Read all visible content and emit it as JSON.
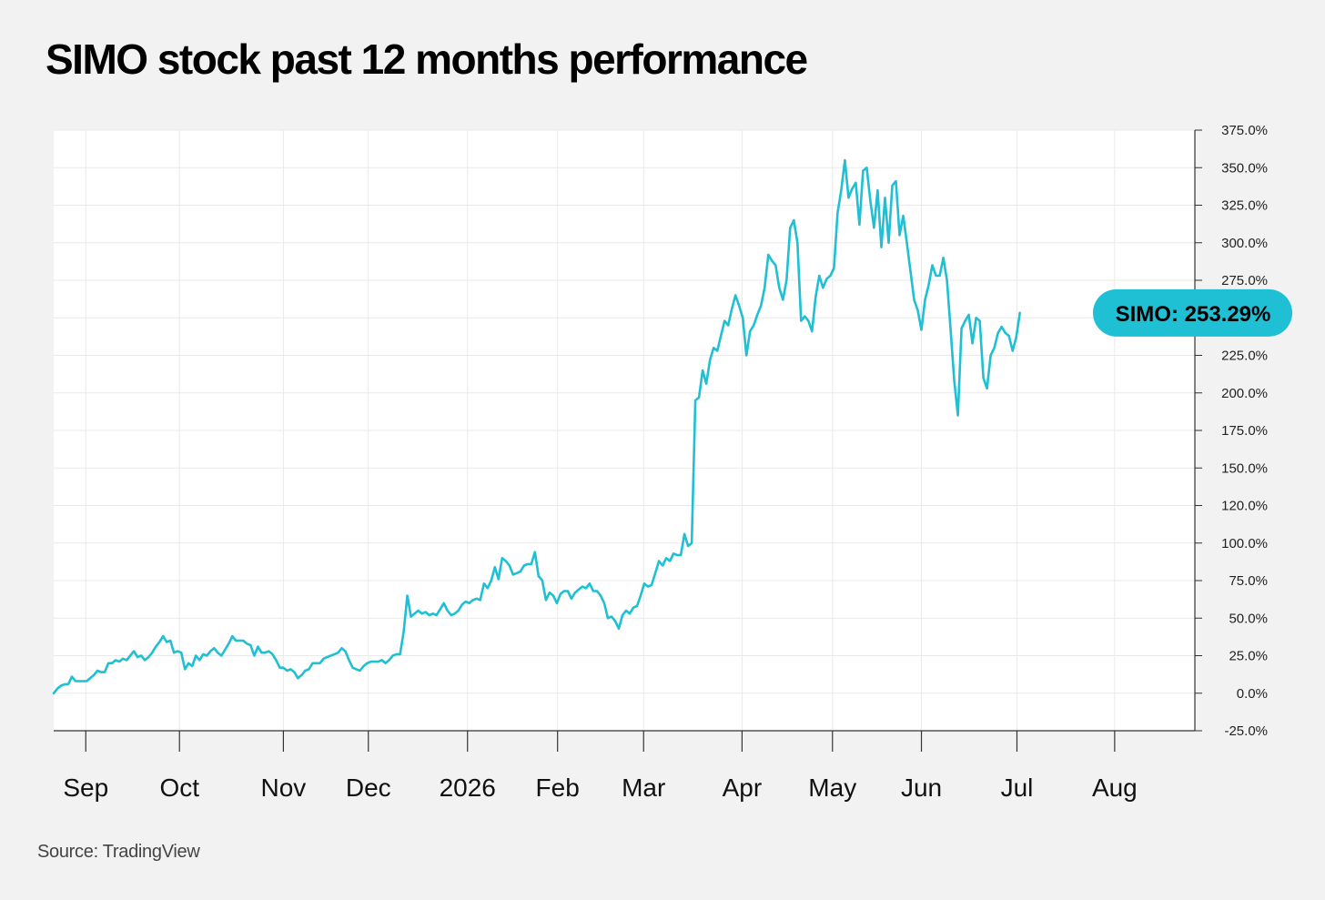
{
  "title": "SIMO stock past 12 months performance",
  "source": "Source: TradingView",
  "colors": {
    "line": "#1fbfd4",
    "grid": "#e9e9e9",
    "axis": "#333333",
    "background": "#f2f2f2",
    "plot": "#ffffff"
  },
  "chart_data": {
    "type": "line",
    "title": "SIMO stock past 12 months performance",
    "xlabel": "",
    "ylabel": "",
    "unit": "%",
    "grid": true,
    "y_ticks": [
      "375.0%",
      "350.0%",
      "325.0%",
      "300.0%",
      "275.0%",
      "250.0%",
      "225.0%",
      "200.0%",
      "175.0%",
      "150.0%",
      "120.0%",
      "100.0%",
      "75.0%",
      "50.0%",
      "25.0%",
      "0.0%",
      "-25.0%"
    ],
    "x_ticks": [
      {
        "label": "Sep",
        "x": 8.8
      },
      {
        "label": "Oct",
        "x": 34.5
      },
      {
        "label": "Nov",
        "x": 63
      },
      {
        "label": "Dec",
        "x": 86.3
      },
      {
        "label": "2026",
        "x": 113.5
      },
      {
        "label": "Feb",
        "x": 138.2
      },
      {
        "label": "Mar",
        "x": 161.8
      },
      {
        "label": "Apr",
        "x": 188.8
      },
      {
        "label": "May",
        "x": 213.6
      },
      {
        "label": "Jun",
        "x": 238
      },
      {
        "label": "Jul",
        "x": 264.2
      },
      {
        "label": "Aug",
        "x": 291
      }
    ],
    "xlim": [
      0,
      313
    ],
    "callout": {
      "label": "SIMO: 253.29%",
      "value": 253.29
    },
    "series": [
      {
        "name": "SIMO",
        "points": [
          [
            0,
            0
          ],
          [
            1,
            3
          ],
          [
            2,
            5
          ],
          [
            3,
            6
          ],
          [
            4,
            6
          ],
          [
            5,
            11
          ],
          [
            6,
            8
          ],
          [
            7,
            8
          ],
          [
            8,
            8
          ],
          [
            9,
            8
          ],
          [
            10,
            10
          ],
          [
            11,
            12
          ],
          [
            12,
            15
          ],
          [
            13,
            14
          ],
          [
            14,
            14
          ],
          [
            15,
            20
          ],
          [
            16,
            20
          ],
          [
            17,
            22
          ],
          [
            18,
            21
          ],
          [
            19,
            23
          ],
          [
            20,
            22
          ],
          [
            21,
            25
          ],
          [
            22,
            28
          ],
          [
            23,
            24
          ],
          [
            24,
            25
          ],
          [
            25,
            22
          ],
          [
            26,
            24
          ],
          [
            27,
            27
          ],
          [
            28,
            31
          ],
          [
            29,
            34
          ],
          [
            30,
            38
          ],
          [
            31,
            34
          ],
          [
            32,
            35
          ],
          [
            33,
            27
          ],
          [
            34,
            28
          ],
          [
            35,
            27
          ],
          [
            36,
            16
          ],
          [
            37,
            20
          ],
          [
            38,
            18
          ],
          [
            39,
            25
          ],
          [
            40,
            22
          ],
          [
            41,
            26
          ],
          [
            42,
            25
          ],
          [
            43,
            28
          ],
          [
            44,
            30
          ],
          [
            45,
            27
          ],
          [
            46,
            25
          ],
          [
            47,
            29
          ],
          [
            48,
            33
          ],
          [
            49,
            38
          ],
          [
            50,
            35
          ],
          [
            51,
            35
          ],
          [
            52,
            35
          ],
          [
            53,
            33
          ],
          [
            54,
            32
          ],
          [
            55,
            25
          ],
          [
            56,
            31
          ],
          [
            57,
            27
          ],
          [
            58,
            27
          ],
          [
            59,
            28
          ],
          [
            60,
            26
          ],
          [
            61,
            22
          ],
          [
            62,
            17
          ],
          [
            63,
            17
          ],
          [
            64,
            15
          ],
          [
            65,
            16
          ],
          [
            66,
            14
          ],
          [
            67,
            10
          ],
          [
            68,
            12
          ],
          [
            69,
            15
          ],
          [
            70,
            16
          ],
          [
            71,
            20
          ],
          [
            72,
            20
          ],
          [
            73,
            20
          ],
          [
            74,
            23
          ],
          [
            75,
            24
          ],
          [
            76,
            25
          ],
          [
            77,
            26
          ],
          [
            78,
            27
          ],
          [
            79,
            30
          ],
          [
            80,
            28
          ],
          [
            81,
            22
          ],
          [
            82,
            17
          ],
          [
            83,
            16
          ],
          [
            84,
            15
          ],
          [
            85,
            18
          ],
          [
            86,
            20
          ],
          [
            87,
            21
          ],
          [
            88,
            21
          ],
          [
            89,
            21
          ],
          [
            90,
            22
          ],
          [
            91,
            20
          ],
          [
            92,
            22
          ],
          [
            93,
            25
          ],
          [
            94,
            26
          ],
          [
            95,
            26
          ],
          [
            96,
            41
          ],
          [
            97,
            65
          ],
          [
            98,
            51
          ],
          [
            99,
            53
          ],
          [
            100,
            55
          ],
          [
            101,
            53
          ],
          [
            102,
            54
          ],
          [
            103,
            52
          ],
          [
            104,
            53
          ],
          [
            105,
            52
          ],
          [
            106,
            56
          ],
          [
            107,
            60
          ],
          [
            108,
            55
          ],
          [
            109,
            52
          ],
          [
            110,
            53
          ],
          [
            111,
            55
          ],
          [
            112,
            59
          ],
          [
            113,
            61
          ],
          [
            114,
            60
          ],
          [
            115,
            62
          ],
          [
            116,
            63
          ],
          [
            117,
            62
          ],
          [
            118,
            73
          ],
          [
            119,
            70
          ],
          [
            120,
            75
          ],
          [
            121,
            84
          ],
          [
            122,
            76
          ],
          [
            123,
            90
          ],
          [
            124,
            88
          ],
          [
            125,
            85
          ],
          [
            126,
            79
          ],
          [
            127,
            80
          ],
          [
            128,
            81
          ],
          [
            129,
            85
          ],
          [
            130,
            86
          ],
          [
            131,
            86
          ],
          [
            132,
            94
          ],
          [
            133,
            78
          ],
          [
            134,
            75
          ],
          [
            135,
            62
          ],
          [
            136,
            67
          ],
          [
            137,
            65
          ],
          [
            138,
            60
          ],
          [
            139,
            66
          ],
          [
            140,
            68
          ],
          [
            141,
            68
          ],
          [
            142,
            63
          ],
          [
            143,
            67
          ],
          [
            144,
            69
          ],
          [
            145,
            71
          ],
          [
            146,
            70
          ],
          [
            147,
            73
          ],
          [
            148,
            68
          ],
          [
            149,
            68
          ],
          [
            150,
            65
          ],
          [
            151,
            60
          ],
          [
            152,
            50
          ],
          [
            153,
            51
          ],
          [
            154,
            48
          ],
          [
            155,
            43
          ],
          [
            156,
            52
          ],
          [
            157,
            55
          ],
          [
            158,
            53
          ],
          [
            159,
            57
          ],
          [
            160,
            58
          ],
          [
            161,
            65
          ],
          [
            162,
            73
          ],
          [
            163,
            71
          ],
          [
            164,
            72
          ],
          [
            165,
            80
          ],
          [
            166,
            88
          ],
          [
            167,
            85
          ],
          [
            168,
            90
          ],
          [
            169,
            88
          ],
          [
            170,
            93
          ],
          [
            171,
            92
          ],
          [
            172,
            92
          ],
          [
            173,
            106
          ],
          [
            174,
            98
          ],
          [
            175,
            100
          ],
          [
            176,
            195
          ],
          [
            177,
            197
          ],
          [
            178,
            215
          ],
          [
            179,
            206
          ],
          [
            180,
            222
          ],
          [
            181,
            230
          ],
          [
            182,
            228
          ],
          [
            183,
            238
          ],
          [
            184,
            248
          ],
          [
            185,
            245
          ],
          [
            186,
            256
          ],
          [
            187,
            265
          ],
          [
            188,
            258
          ],
          [
            189,
            250
          ],
          [
            190,
            225
          ],
          [
            191,
            241
          ],
          [
            192,
            245
          ],
          [
            193,
            252
          ],
          [
            194,
            258
          ],
          [
            195,
            270
          ],
          [
            196,
            292
          ],
          [
            197,
            288
          ],
          [
            198,
            285
          ],
          [
            199,
            270
          ],
          [
            200,
            262
          ],
          [
            201,
            275
          ],
          [
            202,
            310
          ],
          [
            203,
            315
          ],
          [
            204,
            300
          ],
          [
            205,
            248
          ],
          [
            206,
            251
          ],
          [
            207,
            248
          ],
          [
            208,
            241
          ],
          [
            209,
            264
          ],
          [
            210,
            278
          ],
          [
            211,
            270
          ],
          [
            212,
            276
          ],
          [
            213,
            278
          ],
          [
            214,
            283
          ],
          [
            215,
            320
          ],
          [
            216,
            335
          ],
          [
            217,
            355
          ],
          [
            218,
            330
          ],
          [
            219,
            336
          ],
          [
            220,
            340
          ],
          [
            221,
            312
          ],
          [
            222,
            348
          ],
          [
            223,
            350
          ],
          [
            224,
            328
          ],
          [
            225,
            310
          ],
          [
            226,
            335
          ],
          [
            227,
            297
          ],
          [
            228,
            330
          ],
          [
            229,
            300
          ],
          [
            230,
            338
          ],
          [
            231,
            341
          ],
          [
            232,
            305
          ],
          [
            233,
            318
          ],
          [
            234,
            300
          ],
          [
            235,
            281
          ],
          [
            236,
            262
          ],
          [
            237,
            255
          ],
          [
            238,
            242
          ],
          [
            239,
            262
          ],
          [
            240,
            272
          ],
          [
            241,
            285
          ],
          [
            242,
            278
          ],
          [
            243,
            278
          ],
          [
            244,
            290
          ],
          [
            245,
            275
          ],
          [
            246,
            242
          ],
          [
            247,
            208
          ],
          [
            248,
            185
          ],
          [
            249,
            243
          ],
          [
            250,
            248
          ],
          [
            251,
            252
          ],
          [
            252,
            233
          ],
          [
            253,
            250
          ],
          [
            254,
            248
          ],
          [
            255,
            210
          ],
          [
            256,
            203
          ],
          [
            257,
            225
          ],
          [
            258,
            230
          ],
          [
            259,
            240
          ],
          [
            260,
            244
          ],
          [
            261,
            240
          ],
          [
            262,
            238
          ],
          [
            263,
            228
          ],
          [
            264,
            237
          ],
          [
            265,
            253.29
          ]
        ]
      }
    ]
  }
}
